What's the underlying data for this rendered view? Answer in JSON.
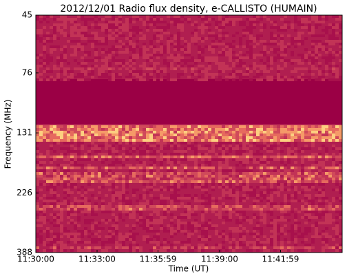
{
  "chart_data": {
    "type": "spectrogram",
    "title": "2012/12/01  Radio flux density, e-CALLISTO (HUMAIN)",
    "x_label": "Time (UT)",
    "y_label": "Frequency (MHz)",
    "xlim": [
      "11:30:00",
      "11:45:00"
    ],
    "xticks": [
      "11:30:00",
      "11:33:00",
      "11:35:59",
      "11:39:00",
      "11:41:59"
    ],
    "ylim": [
      45,
      388
    ],
    "y_inverted": true,
    "log_scale": true,
    "yticks": [
      45,
      76,
      131,
      226,
      388
    ]
  }
}
